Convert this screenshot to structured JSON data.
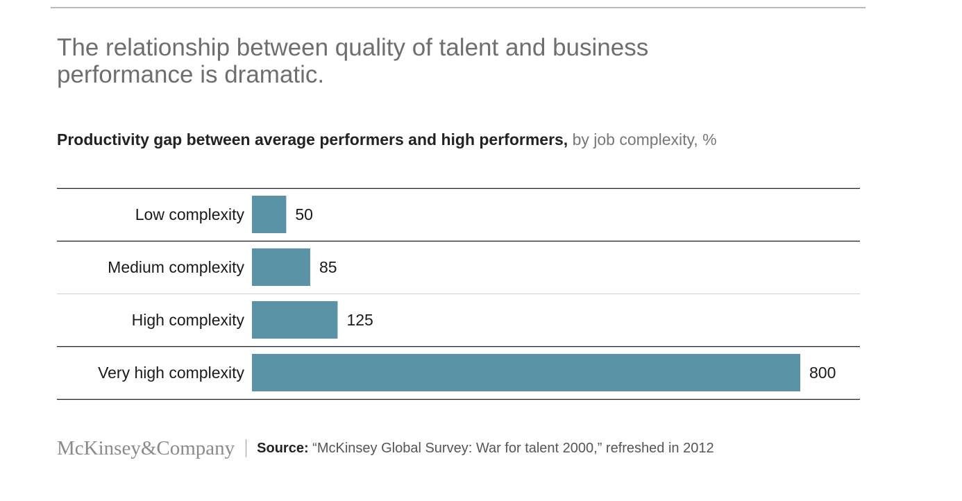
{
  "headline": "The relationship between quality of talent and business performance is dramatic.",
  "subtitle": {
    "bold": "Productivity gap between average performers and high performers,",
    "light": " by job complexity, %"
  },
  "chart_data": {
    "type": "bar",
    "orientation": "horizontal",
    "categories": [
      "Low complexity",
      "Medium complexity",
      "High complexity",
      "Very high complexity"
    ],
    "values": [
      50,
      85,
      125,
      800
    ],
    "data_labels": [
      "50",
      "85",
      "125",
      "800"
    ],
    "xlim": [
      0,
      800
    ],
    "grid": false,
    "bar_color": "#5b93a6"
  },
  "footer": {
    "logo": "McKinsey&Company",
    "source_label": "Source:",
    "source_text": " “McKinsey Global Survey: War for talent 2000,” refreshed in 2012"
  }
}
